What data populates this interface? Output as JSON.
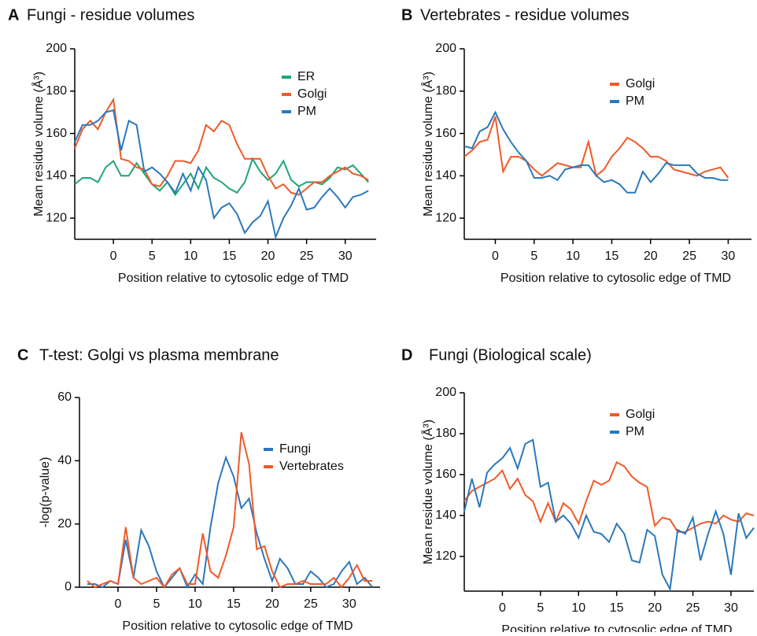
{
  "chart_data": [
    {
      "type": "line",
      "panel": "A",
      "title": "Fungi - residue volumes",
      "x_label": "Position relative to cytosolic edge of TMD",
      "y_label": "Mean residue volume (Å³)",
      "xlim": [
        -5,
        34
      ],
      "ylim": [
        110,
        200
      ],
      "xticks": [
        0,
        5,
        10,
        15,
        20,
        25,
        30
      ],
      "yticks": [
        120,
        140,
        160,
        180,
        200
      ],
      "x": [
        -5,
        -4,
        -3,
        -2,
        -1,
        0,
        1,
        2,
        3,
        4,
        5,
        6,
        7,
        8,
        9,
        10,
        11,
        12,
        13,
        14,
        15,
        16,
        17,
        18,
        19,
        20,
        21,
        22,
        23,
        24,
        25,
        26,
        27,
        28,
        29,
        30,
        31,
        32,
        33
      ],
      "series": [
        {
          "name": "ER",
          "color": "#1fa576",
          "values": [
            136,
            139,
            139,
            137,
            144,
            147,
            140,
            140,
            146,
            141,
            136,
            133,
            137,
            131,
            136,
            141,
            134,
            144,
            139,
            137,
            134,
            132,
            137,
            148,
            142,
            138,
            141,
            147,
            138,
            135,
            137,
            137,
            136,
            139,
            144,
            143,
            145,
            141,
            137
          ]
        },
        {
          "name": "Golgi",
          "color": "#ef5a28",
          "values": [
            153,
            162,
            166,
            162,
            170,
            176,
            148,
            147,
            144,
            143,
            136,
            135,
            140,
            147,
            147,
            146,
            152,
            164,
            161,
            166,
            164,
            155,
            148,
            148,
            148,
            140,
            134,
            136,
            132,
            131,
            134,
            137,
            137,
            140,
            142,
            144,
            141,
            140,
            138
          ]
        },
        {
          "name": "PM",
          "color": "#2b78bd",
          "values": [
            156,
            164,
            164,
            166,
            170,
            171,
            152,
            166,
            164,
            142,
            144,
            141,
            137,
            132,
            141,
            133,
            144,
            138,
            120,
            125,
            127,
            122,
            113,
            118,
            121,
            128,
            111,
            120,
            126,
            134,
            124,
            125,
            130,
            134,
            130,
            125,
            130,
            131,
            133
          ]
        }
      ]
    },
    {
      "type": "line",
      "panel": "B",
      "title": "Vertebrates - residue volumes",
      "x_label": "Position relative to cytosolic edge of TMD",
      "y_label": "Mean residue volume (Å³)",
      "xlim": [
        -4,
        33
      ],
      "ylim": [
        110,
        200
      ],
      "xticks": [
        0,
        5,
        10,
        15,
        20,
        25,
        30
      ],
      "yticks": [
        120,
        140,
        160,
        180,
        200
      ],
      "x": [
        -4,
        -3,
        -2,
        -1,
        0,
        1,
        2,
        3,
        4,
        5,
        6,
        7,
        8,
        9,
        10,
        11,
        12,
        13,
        14,
        15,
        16,
        17,
        18,
        19,
        20,
        21,
        22,
        23,
        24,
        25,
        26,
        27,
        28,
        29,
        30
      ],
      "series": [
        {
          "name": "Golgi",
          "color": "#ef5a28",
          "values": [
            149,
            152,
            156,
            157,
            168,
            142,
            149,
            149,
            147,
            143,
            140,
            143,
            146,
            145,
            144,
            144,
            156,
            140,
            143,
            149,
            153,
            158,
            156,
            153,
            149,
            149,
            147,
            143,
            142,
            141,
            140,
            142,
            143,
            144,
            139
          ]
        },
        {
          "name": "PM",
          "color": "#2b78bd",
          "values": [
            154,
            153,
            161,
            163,
            170,
            162,
            156,
            151,
            147,
            139,
            139,
            140,
            138,
            143,
            144,
            145,
            145,
            140,
            137,
            138,
            136,
            132,
            132,
            142,
            137,
            141,
            146,
            145,
            145,
            145,
            141,
            139,
            139,
            138,
            138
          ]
        }
      ]
    },
    {
      "type": "line",
      "panel": "C",
      "title": "T-test: Golgi vs plasma membrane",
      "x_label": "Position relative to cytosolic edge of TMD",
      "y_label": "-log(p-value)",
      "xlim": [
        -5,
        34
      ],
      "ylim": [
        0,
        60
      ],
      "xticks": [
        0,
        5,
        10,
        15,
        20,
        25,
        30
      ],
      "yticks": [
        0,
        20,
        40,
        60
      ],
      "x": [
        -4,
        -3,
        -2,
        -1,
        0,
        1,
        2,
        3,
        4,
        5,
        6,
        7,
        8,
        9,
        10,
        11,
        12,
        13,
        14,
        15,
        16,
        17,
        18,
        19,
        20,
        21,
        22,
        23,
        24,
        25,
        26,
        27,
        28,
        29,
        30,
        31,
        32,
        33
      ],
      "series": [
        {
          "name": "Fungi",
          "color": "#2b78bd",
          "values": [
            1,
            1,
            0,
            2,
            1,
            15,
            3,
            18,
            13,
            5,
            0,
            3,
            6,
            0,
            4,
            1,
            19,
            33,
            41,
            35,
            25,
            28,
            17,
            9,
            2,
            9,
            6,
            1,
            1,
            5,
            3,
            0,
            1,
            5,
            8,
            1,
            3,
            0
          ]
        },
        {
          "name": "Vertebrates",
          "color": "#ef5a28",
          "values": [
            2,
            0,
            1,
            2,
            1,
            19,
            3,
            1,
            2,
            3,
            0,
            4,
            6,
            1,
            1,
            17,
            5,
            3,
            10,
            19,
            49,
            39,
            12,
            13,
            5,
            0,
            1,
            1,
            2,
            1,
            1,
            1,
            3,
            0,
            3,
            7,
            2,
            2
          ]
        }
      ]
    },
    {
      "type": "line",
      "panel": "D",
      "title": "Fungi (Biological scale)",
      "x_label": "Position relative to cytosolic edge of TMD",
      "y_label": "Mean residue volume (Å³)",
      "xlim": [
        -5,
        33
      ],
      "ylim": [
        103,
        200
      ],
      "xticks": [
        0,
        5,
        10,
        15,
        20,
        25,
        30
      ],
      "yticks": [
        120,
        140,
        160,
        180,
        200
      ],
      "x": [
        -5,
        -4,
        -3,
        -2,
        -1,
        0,
        1,
        2,
        3,
        4,
        5,
        6,
        7,
        8,
        9,
        10,
        11,
        12,
        13,
        14,
        15,
        16,
        17,
        18,
        19,
        20,
        21,
        22,
        23,
        24,
        25,
        26,
        27,
        28,
        29,
        30,
        31,
        32,
        33
      ],
      "series": [
        {
          "name": "Golgi",
          "color": "#ef5a28",
          "values": [
            147,
            152,
            154,
            156,
            158,
            162,
            153,
            158,
            150,
            147,
            137,
            146,
            137,
            146,
            143,
            136,
            147,
            157,
            155,
            157,
            166,
            164,
            159,
            156,
            154,
            135,
            139,
            138,
            132,
            132,
            134,
            136,
            137,
            136,
            140,
            138,
            137,
            141,
            140
          ]
        },
        {
          "name": "PM",
          "color": "#2b78bd",
          "values": [
            142,
            158,
            144,
            161,
            165,
            168,
            173,
            163,
            175,
            177,
            154,
            156,
            137,
            140,
            136,
            129,
            140,
            132,
            131,
            127,
            136,
            131,
            118,
            117,
            133,
            130,
            111,
            104,
            133,
            131,
            139,
            118,
            131,
            142,
            131,
            111,
            141,
            129,
            134
          ]
        }
      ]
    }
  ]
}
